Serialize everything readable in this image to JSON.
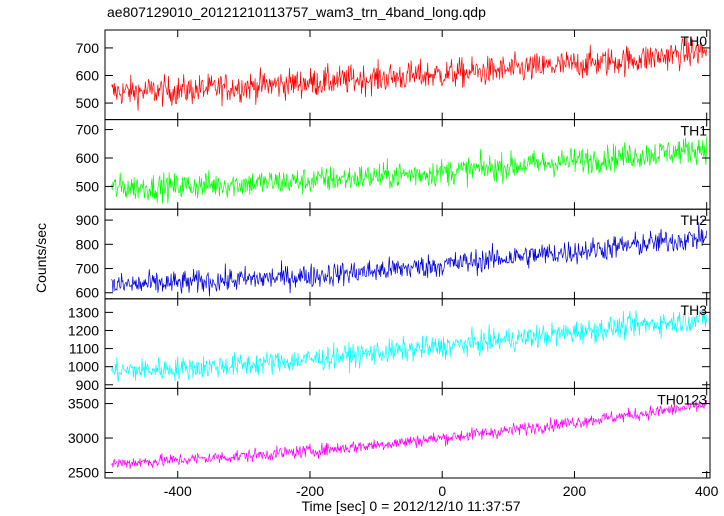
{
  "chart_data": {
    "type": "line",
    "title": "ae807129010_20121210113757_wam3_trn_4band_long.qdp",
    "xlabel": "Time [sec] 0 = 2012/12/10 11:37:57",
    "ylabel": "Counts/sec",
    "xlim": [
      -510,
      405
    ],
    "x_ticks": [
      -400,
      -200,
      0,
      200,
      400
    ],
    "grid": false,
    "panels": [
      {
        "name": "TH0",
        "color": "#ff0000",
        "ylim": [
          440,
          765
        ],
        "y_ticks": [
          500,
          600,
          700
        ],
        "trend": {
          "x": [
            -500,
            -400,
            -300,
            -200,
            -100,
            0,
            100,
            200,
            300,
            400
          ],
          "y": [
            540,
            545,
            560,
            575,
            590,
            605,
            620,
            640,
            660,
            690
          ]
        },
        "noise": 45
      },
      {
        "name": "TH1",
        "color": "#00ff00",
        "ylim": [
          420,
          735
        ],
        "y_ticks": [
          500,
          600,
          700
        ],
        "trend": {
          "x": [
            -500,
            -400,
            -300,
            -200,
            -100,
            0,
            100,
            200,
            300,
            400
          ],
          "y": [
            495,
            500,
            510,
            520,
            535,
            550,
            570,
            590,
            610,
            635
          ]
        },
        "noise": 40
      },
      {
        "name": "TH2",
        "color": "#0000dd",
        "ylim": [
          575,
          945
        ],
        "y_ticks": [
          600,
          700,
          800,
          900
        ],
        "trend": {
          "x": [
            -500,
            -400,
            -300,
            -200,
            -100,
            0,
            100,
            200,
            300,
            400
          ],
          "y": [
            630,
            640,
            655,
            670,
            690,
            715,
            745,
            770,
            800,
            830
          ]
        },
        "noise": 42
      },
      {
        "name": "TH3",
        "color": "#00ffff",
        "ylim": [
          880,
          1375
        ],
        "y_ticks": [
          900,
          1000,
          1100,
          1200,
          1300
        ],
        "trend": {
          "x": [
            -500,
            -400,
            -300,
            -200,
            -100,
            0,
            100,
            200,
            300,
            400
          ],
          "y": [
            975,
            990,
            1010,
            1040,
            1075,
            1110,
            1150,
            1190,
            1230,
            1265
          ]
        },
        "noise": 55
      },
      {
        "name": "TH0123",
        "color": "#ff00ff",
        "ylim": [
          2420,
          3720
        ],
        "y_ticks": [
          2500,
          3000,
          3500
        ],
        "trend": {
          "x": [
            -500,
            -400,
            -300,
            -200,
            -100,
            0,
            100,
            200,
            300,
            400
          ],
          "y": [
            2630,
            2680,
            2740,
            2810,
            2900,
            3000,
            3110,
            3230,
            3350,
            3480
          ]
        },
        "noise": 80
      }
    ]
  }
}
